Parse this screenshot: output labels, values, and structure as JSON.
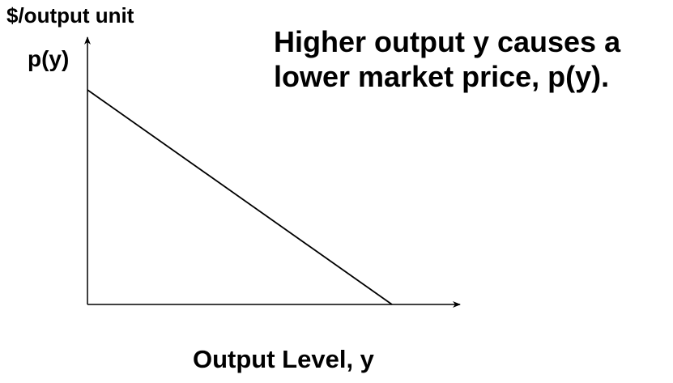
{
  "diagram": {
    "y_axis_label": "$/output unit",
    "curve_label": "p(y)",
    "x_axis_label": "Output Level, y",
    "annotation_lines": [
      "Higher output y causes a",
      "lower market price, p(y)."
    ],
    "line_color": "#000000",
    "text_color": "#000000",
    "background": "#ffffff"
  }
}
